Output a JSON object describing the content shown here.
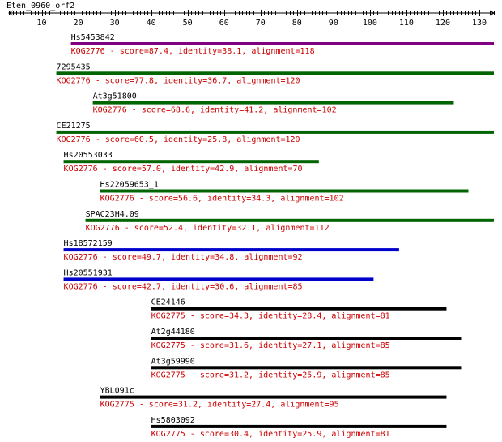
{
  "query_name": "Eten_0960_orf2",
  "axis": {
    "min": 1,
    "max": 134,
    "ticks": [
      10,
      20,
      30,
      40,
      50,
      60,
      70,
      80,
      90,
      100,
      110,
      120,
      130
    ]
  },
  "colors": {
    "purple": "#800080",
    "green": "#006400",
    "blue": "#0000cd",
    "black": "#000000",
    "label": "#000000",
    "desc": "#cc0000"
  },
  "hits": [
    {
      "name": "Hs5453842",
      "start": 18,
      "end": 134,
      "color": "purple",
      "desc": "KOG2776 - score=87.4, identity=38.1, alignment=118"
    },
    {
      "name": "7295435",
      "start": 14,
      "end": 134,
      "color": "green",
      "desc": "KOG2776 - score=77.8, identity=36.7, alignment=120"
    },
    {
      "name": "At3g51800",
      "start": 24,
      "end": 123,
      "color": "green",
      "desc": "KOG2776 - score=68.6, identity=41.2, alignment=102"
    },
    {
      "name": "CE21275",
      "start": 14,
      "end": 134,
      "color": "green",
      "desc": "KOG2776 - score=60.5, identity=25.8, alignment=120"
    },
    {
      "name": "Hs20553033",
      "start": 16,
      "end": 86,
      "color": "green",
      "desc": "KOG2776 - score=57.0, identity=42.9, alignment=70"
    },
    {
      "name": "Hs22059653_1",
      "start": 26,
      "end": 127,
      "color": "green",
      "desc": "KOG2776 - score=56.6, identity=34.3, alignment=102"
    },
    {
      "name": "SPAC23H4.09",
      "start": 22,
      "end": 134,
      "color": "green",
      "desc": "KOG2776 - score=52.4, identity=32.1, alignment=112"
    },
    {
      "name": "Hs18572159",
      "start": 16,
      "end": 108,
      "color": "blue",
      "desc": "KOG2776 - score=49.7, identity=34.8, alignment=92"
    },
    {
      "name": "Hs20551931",
      "start": 16,
      "end": 101,
      "color": "blue",
      "desc": "KOG2776 - score=42.7, identity=30.6, alignment=85"
    },
    {
      "name": "CE24146",
      "start": 40,
      "end": 121,
      "color": "black",
      "desc": "KOG2775 - score=34.3, identity=28.4, alignment=81"
    },
    {
      "name": "At2g44180",
      "start": 40,
      "end": 125,
      "color": "black",
      "desc": "KOG2775 - score=31.6, identity=27.1, alignment=85"
    },
    {
      "name": "At3g59990",
      "start": 40,
      "end": 125,
      "color": "black",
      "desc": "KOG2775 - score=31.2, identity=25.9, alignment=85"
    },
    {
      "name": "YBL091c",
      "start": 26,
      "end": 121,
      "color": "black",
      "desc": "KOG2775 - score=31.2, identity=27.4, alignment=95"
    },
    {
      "name": "Hs5803092",
      "start": 40,
      "end": 121,
      "color": "black",
      "desc": "KOG2775 - score=30.4, identity=25.9, alignment=81"
    }
  ]
}
